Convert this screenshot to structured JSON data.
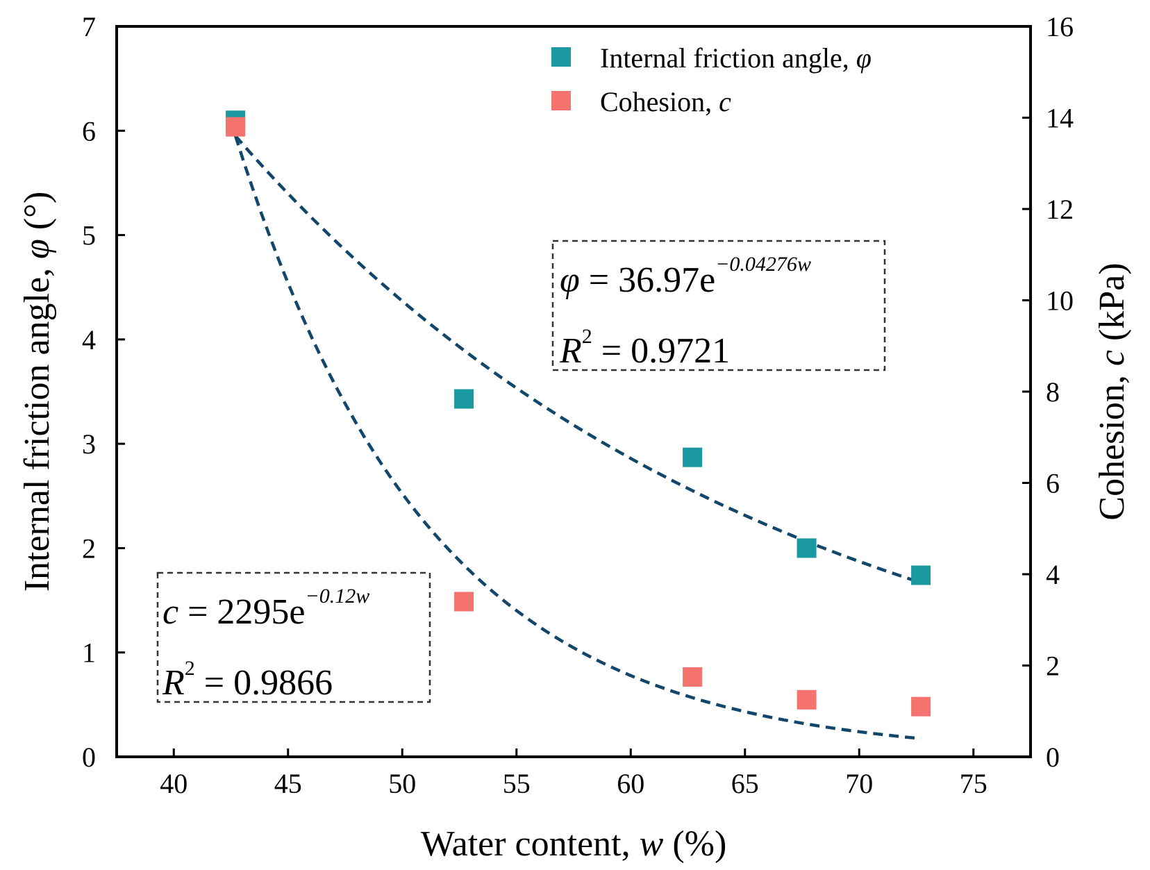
{
  "chart_data": {
    "type": "scatter",
    "xlabel": "Water content, ",
    "xlabel_var": "w",
    "xlabel_unit": " (%)",
    "ylabel_left": "Internal friction angle, ",
    "ylabel_left_var": "φ",
    "ylabel_left_unit": " (°)",
    "ylabel_right": "Cohesion, ",
    "ylabel_right_var": "c",
    "ylabel_right_unit": " (kPa)",
    "xlim": [
      37.5,
      77.5
    ],
    "ylim_left": [
      0,
      7
    ],
    "ylim_right": [
      0,
      16
    ],
    "xticks": [
      40,
      45,
      50,
      55,
      60,
      65,
      70,
      75
    ],
    "yticks_left": [
      0,
      1,
      2,
      3,
      4,
      5,
      6,
      7
    ],
    "yticks_right": [
      0,
      2,
      4,
      6,
      8,
      10,
      12,
      14,
      16
    ],
    "series": [
      {
        "name": "Internal friction angle, ",
        "var": "φ",
        "axis": "left",
        "color": "#1a9aa0",
        "x": [
          42.7,
          52.7,
          62.7,
          67.7,
          72.7
        ],
        "y": [
          6.1,
          3.43,
          2.87,
          2.0,
          1.74
        ]
      },
      {
        "name": "Cohesion, ",
        "var": "c",
        "axis": "right",
        "color": "#f4736f",
        "x": [
          42.7,
          52.7,
          62.7,
          67.7,
          72.7
        ],
        "y": [
          13.8,
          3.4,
          1.75,
          1.25,
          1.1
        ]
      }
    ],
    "fits": [
      {
        "series": "phi",
        "axis": "left",
        "x_range": [
          42.7,
          72.7
        ],
        "start_value": 5.95,
        "end_value": 1.67,
        "color": "#12476b",
        "eq_lhs": "φ",
        "eq_mid": " = 36.97e",
        "eq_exp_num": "−0.04276",
        "eq_exp_var": "w",
        "r2_lhs": "R",
        "r2_sup": "2",
        "r2_rhs": " = 0.9721"
      },
      {
        "series": "c",
        "axis": "right",
        "x_range": [
          42.7,
          72.7
        ],
        "start_value": 13.6,
        "end_value": 0.4,
        "color": "#12476b",
        "eq_lhs": "c",
        "eq_mid": " = 2295e",
        "eq_exp_num": "−0.12",
        "eq_exp_var": "w",
        "r2_lhs": "R",
        "r2_sup": "2",
        "r2_rhs": " = 0.9866"
      }
    ]
  }
}
